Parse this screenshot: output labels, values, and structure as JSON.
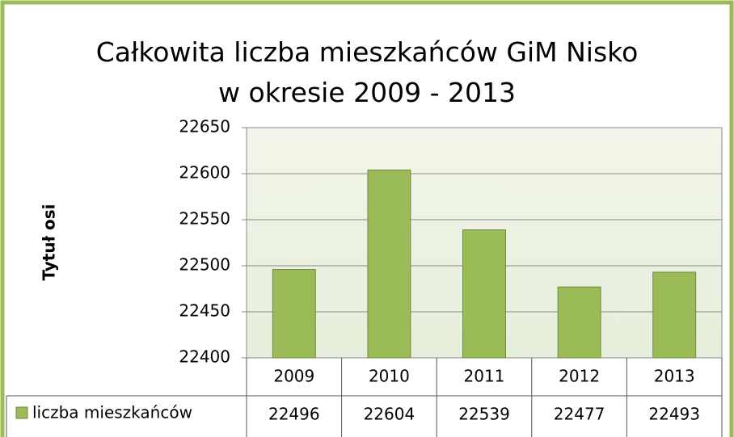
{
  "chart_data": {
    "type": "bar",
    "title": "Całkowita liczba mieszkańców GiM Nisko w okresie 2009 - 2013",
    "y_axis_label": "Tytuł osi",
    "categories": [
      "2009",
      "2010",
      "2011",
      "2012",
      "2013"
    ],
    "series": [
      {
        "name": "liczba mieszkańców",
        "color": "#9bbb59",
        "values": [
          22496,
          22604,
          22539,
          22477,
          22493
        ]
      }
    ],
    "ylim": [
      22400,
      22650
    ],
    "yticks": [
      22400,
      22450,
      22500,
      22550,
      22600,
      22650
    ],
    "grid": true,
    "data_table": true
  }
}
